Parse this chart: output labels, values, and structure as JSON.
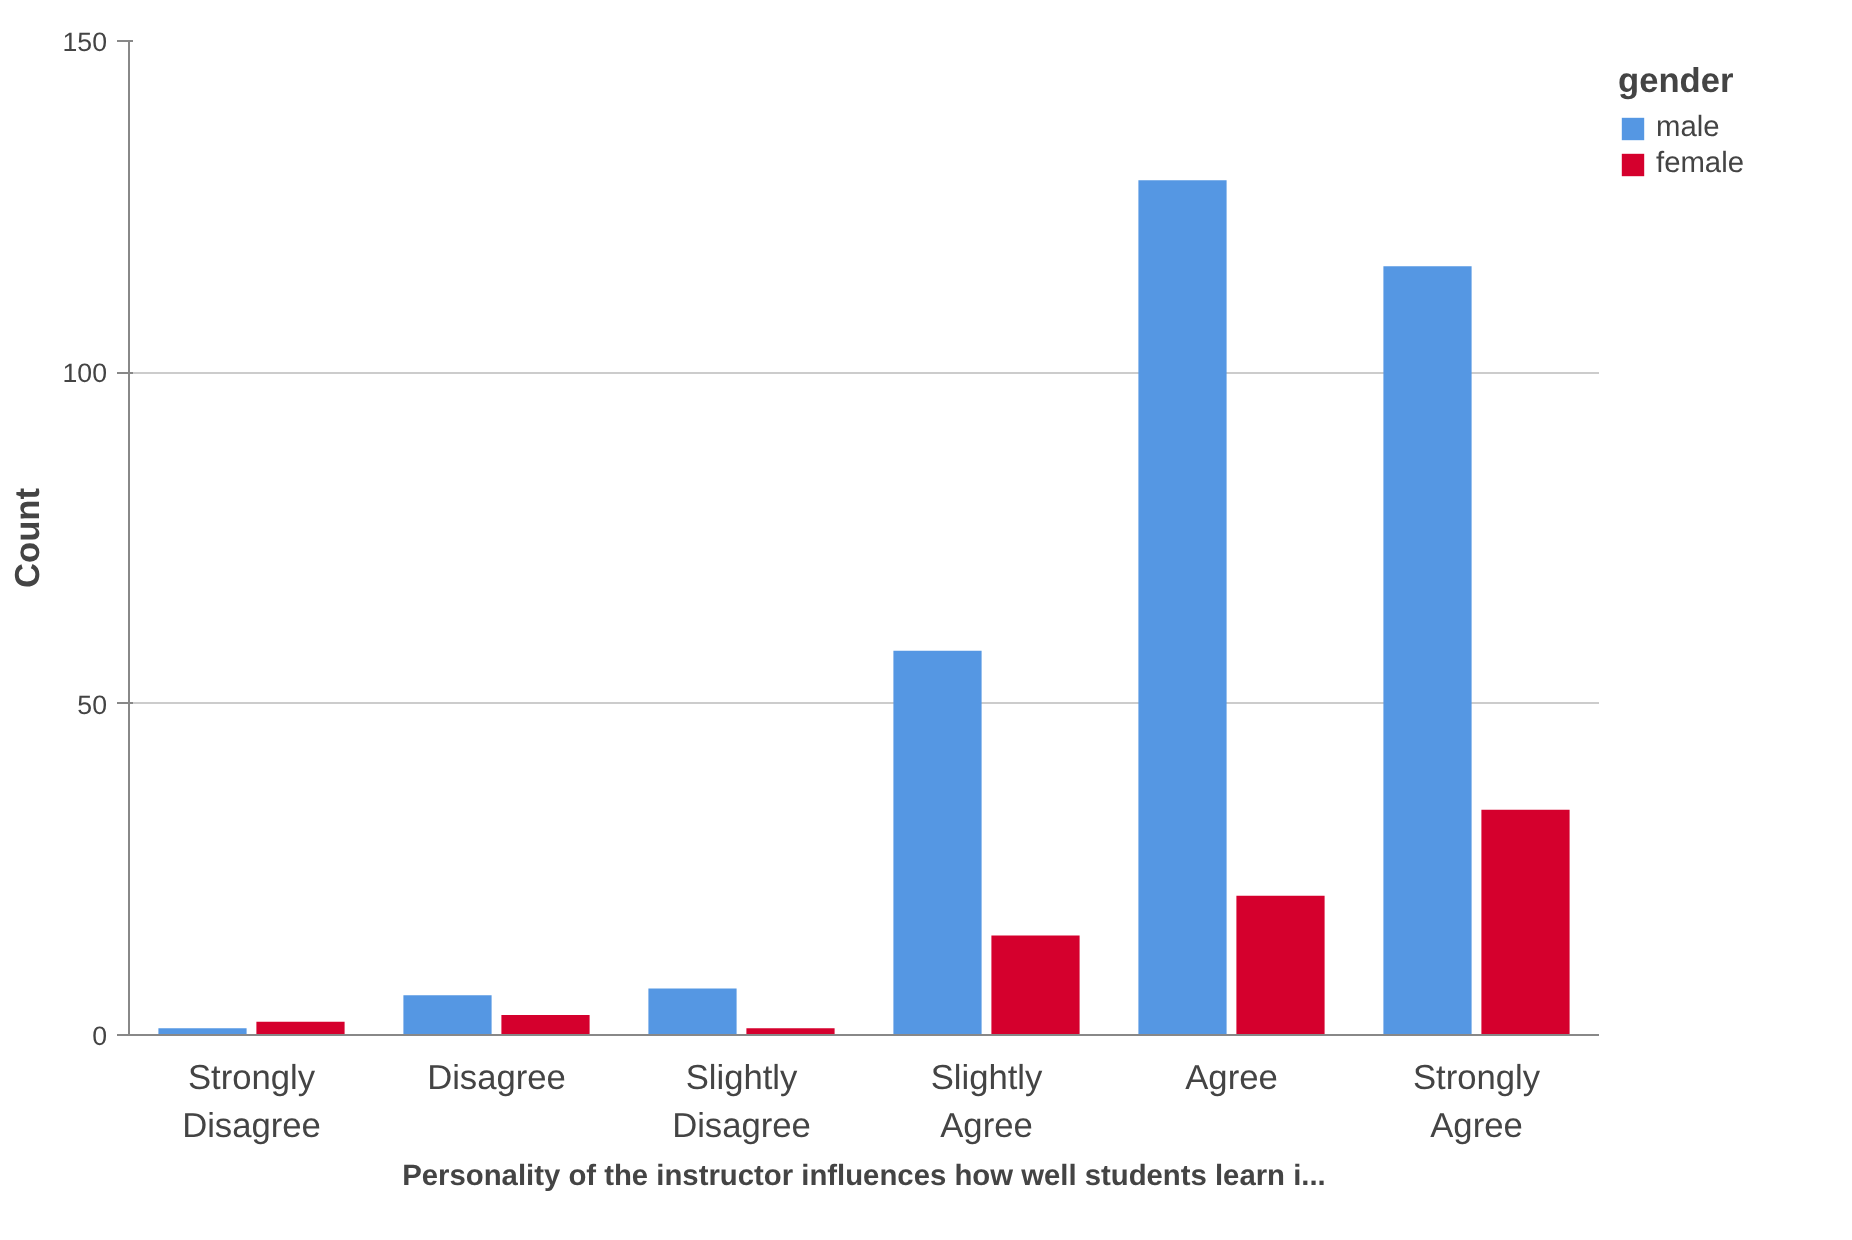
{
  "chart_data": {
    "type": "bar",
    "xlabel": "Personality of the instructor influences how well students learn i...",
    "ylabel": "Count",
    "legend_title": "gender",
    "categories": [
      "Strongly\nDisagree",
      "Disagree",
      "Slightly\nDisagree",
      "Slightly\nAgree",
      "Agree",
      "Strongly\nAgree"
    ],
    "series": [
      {
        "name": "male",
        "color": "#5597e3",
        "values": [
          1,
          6,
          7,
          58,
          129,
          116
        ]
      },
      {
        "name": "female",
        "color": "#d5002d",
        "values": [
          2,
          3,
          1,
          15,
          21,
          34
        ]
      }
    ],
    "ylim": [
      0,
      150
    ],
    "yticks": [
      0,
      50,
      100,
      150
    ],
    "grid": "y",
    "legend": "top right"
  }
}
